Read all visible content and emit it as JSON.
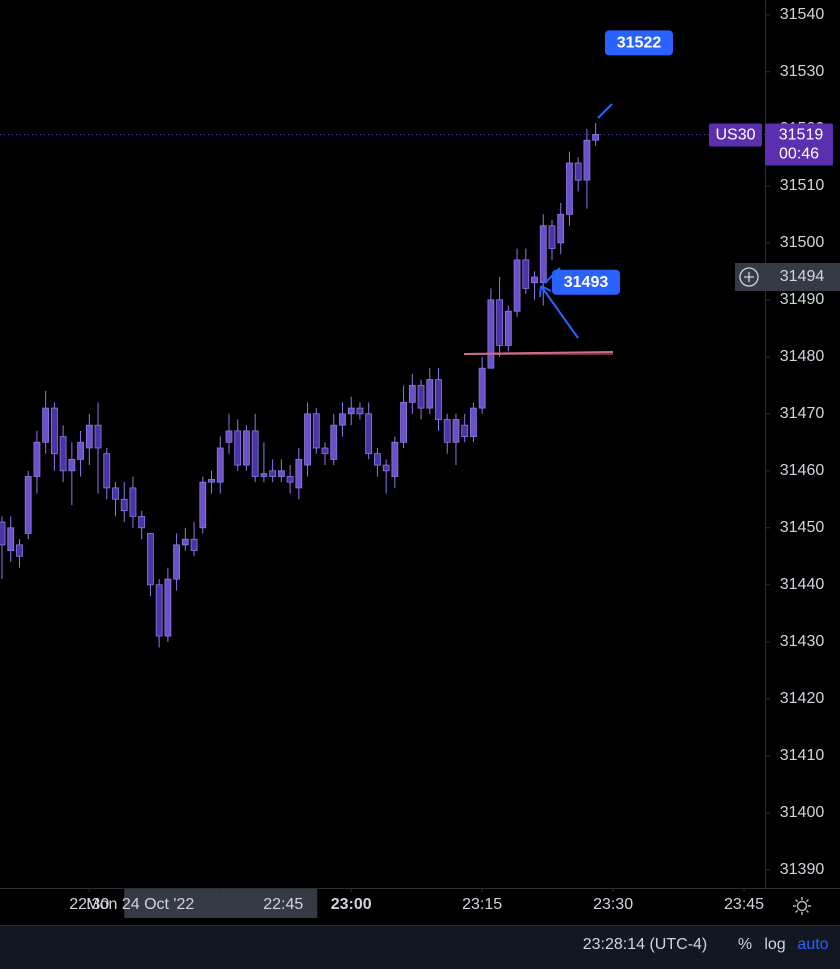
{
  "chart_data": {
    "type": "candlestick",
    "symbol": "US30",
    "up_color": "#6a52c6",
    "down_color": "#4b34a3",
    "border_color": "#8e78e8",
    "open": [
      31451,
      31446,
      31447,
      31449,
      31459,
      31465,
      31471,
      31466,
      31460,
      31462,
      31464,
      31468,
      31463,
      31457,
      31455,
      31457,
      31452,
      31449,
      31440,
      31431,
      31441,
      31447,
      31448,
      31450,
      31458,
      31458,
      31465,
      31467,
      31461,
      31467,
      31459,
      31460,
      31459,
      31459,
      31457,
      31461,
      31470,
      31464,
      31462,
      31468,
      31470,
      31471,
      31470,
      31463,
      31461,
      31459,
      31465,
      31472,
      31475,
      31471,
      31476,
      31469,
      31465,
      31468,
      31466,
      31471,
      31478,
      31490,
      31482,
      31488,
      31497,
      31493,
      31493,
      31503,
      31500,
      31505,
      31514,
      31511,
      31518
    ],
    "high": [
      31452,
      31452,
      31448,
      31460,
      31467,
      31474,
      31472,
      31468,
      31465,
      31467,
      31470,
      31472,
      31464,
      31458,
      31458,
      31459,
      31453,
      31449,
      31441,
      31443,
      31449,
      31450,
      31451,
      31459,
      31460,
      31466,
      31470,
      31469,
      31468,
      31470,
      31465,
      31462,
      31462,
      31461,
      31464,
      31472,
      31471,
      31465,
      31470,
      31472,
      31473,
      31472,
      31472,
      31464,
      31462,
      31466,
      31475,
      31477,
      31476,
      31478,
      31478,
      31470,
      31470,
      31470,
      31472,
      31480,
      31492,
      31494,
      31489,
      31499,
      31499,
      31495,
      31505,
      31504,
      31507,
      31516,
      31515,
      31520,
      31521
    ],
    "low": [
      31441,
      31444,
      31443,
      31448,
      31456,
      31463,
      31460,
      31458,
      31454,
      31459,
      31461,
      31456,
      31455,
      31452,
      31451,
      31450,
      31448,
      31438,
      31429,
      31430,
      31439,
      31446,
      31445,
      31449,
      31456,
      31456,
      31463,
      31460,
      31460,
      31458,
      31458,
      31458,
      31458,
      31456,
      31455,
      31459,
      31463,
      31461,
      31461,
      31466,
      31468,
      31469,
      31462,
      31459,
      31456,
      31457,
      31464,
      31470,
      31469,
      31470,
      31467,
      31463,
      31461,
      31465,
      31465,
      31470,
      31478,
      31480,
      31481,
      31487,
      31491,
      31490,
      31489,
      31497,
      31498,
      31503,
      31509,
      31506,
      31517
    ],
    "close": [
      31447,
      31450,
      31445,
      31459,
      31465,
      31471,
      31463,
      31460,
      31462,
      31465,
      31468,
      31464,
      31457,
      31455,
      31453,
      31452,
      31450,
      31440,
      31431,
      31441,
      31447,
      31448,
      31446,
      31458,
      31458.5,
      31464,
      31467,
      31461,
      31467,
      31459,
      31459.5,
      31459,
      31460,
      31458,
      31462,
      31470,
      31464,
      31463,
      31468,
      31470,
      31471,
      31470,
      31463,
      31461,
      31460,
      31465,
      31472,
      31475,
      31471,
      31476,
      31469,
      31465,
      31469,
      31466,
      31471,
      31478,
      31490,
      31482,
      31488,
      31497,
      31492,
      31494,
      31503,
      31499,
      31505,
      31514,
      31511,
      31518,
      31519
    ],
    "xlim": [
      -0.23,
      87.4
    ],
    "xticks": [
      {
        "value": 10,
        "label": "22:30"
      },
      {
        "value": 25,
        "label": "22:45"
      },
      {
        "value": 40,
        "label": "23:00"
      },
      {
        "value": 55,
        "label": "23:15"
      },
      {
        "value": 70,
        "label": "23:30"
      },
      {
        "value": 85,
        "label": "23:45"
      }
    ],
    "ylim": [
      31386.8,
      31542.6
    ],
    "yticks": [
      31390,
      31400,
      31410,
      31420,
      31430,
      31440,
      31450,
      31460,
      31470,
      31480,
      31490,
      31500,
      31510,
      31520,
      31530,
      31540
    ],
    "last_price": {
      "value": 31519,
      "countdown": "00:46"
    },
    "crosshair": {
      "price": 31494,
      "date": "Mon 24 Oct '22"
    },
    "callouts": [
      31522,
      31493
    ],
    "support_line": 31480.5
  },
  "status_bar": {
    "clock": "23:28:14 (UTC-4)",
    "percent": "%",
    "log": "log",
    "auto": "auto"
  }
}
